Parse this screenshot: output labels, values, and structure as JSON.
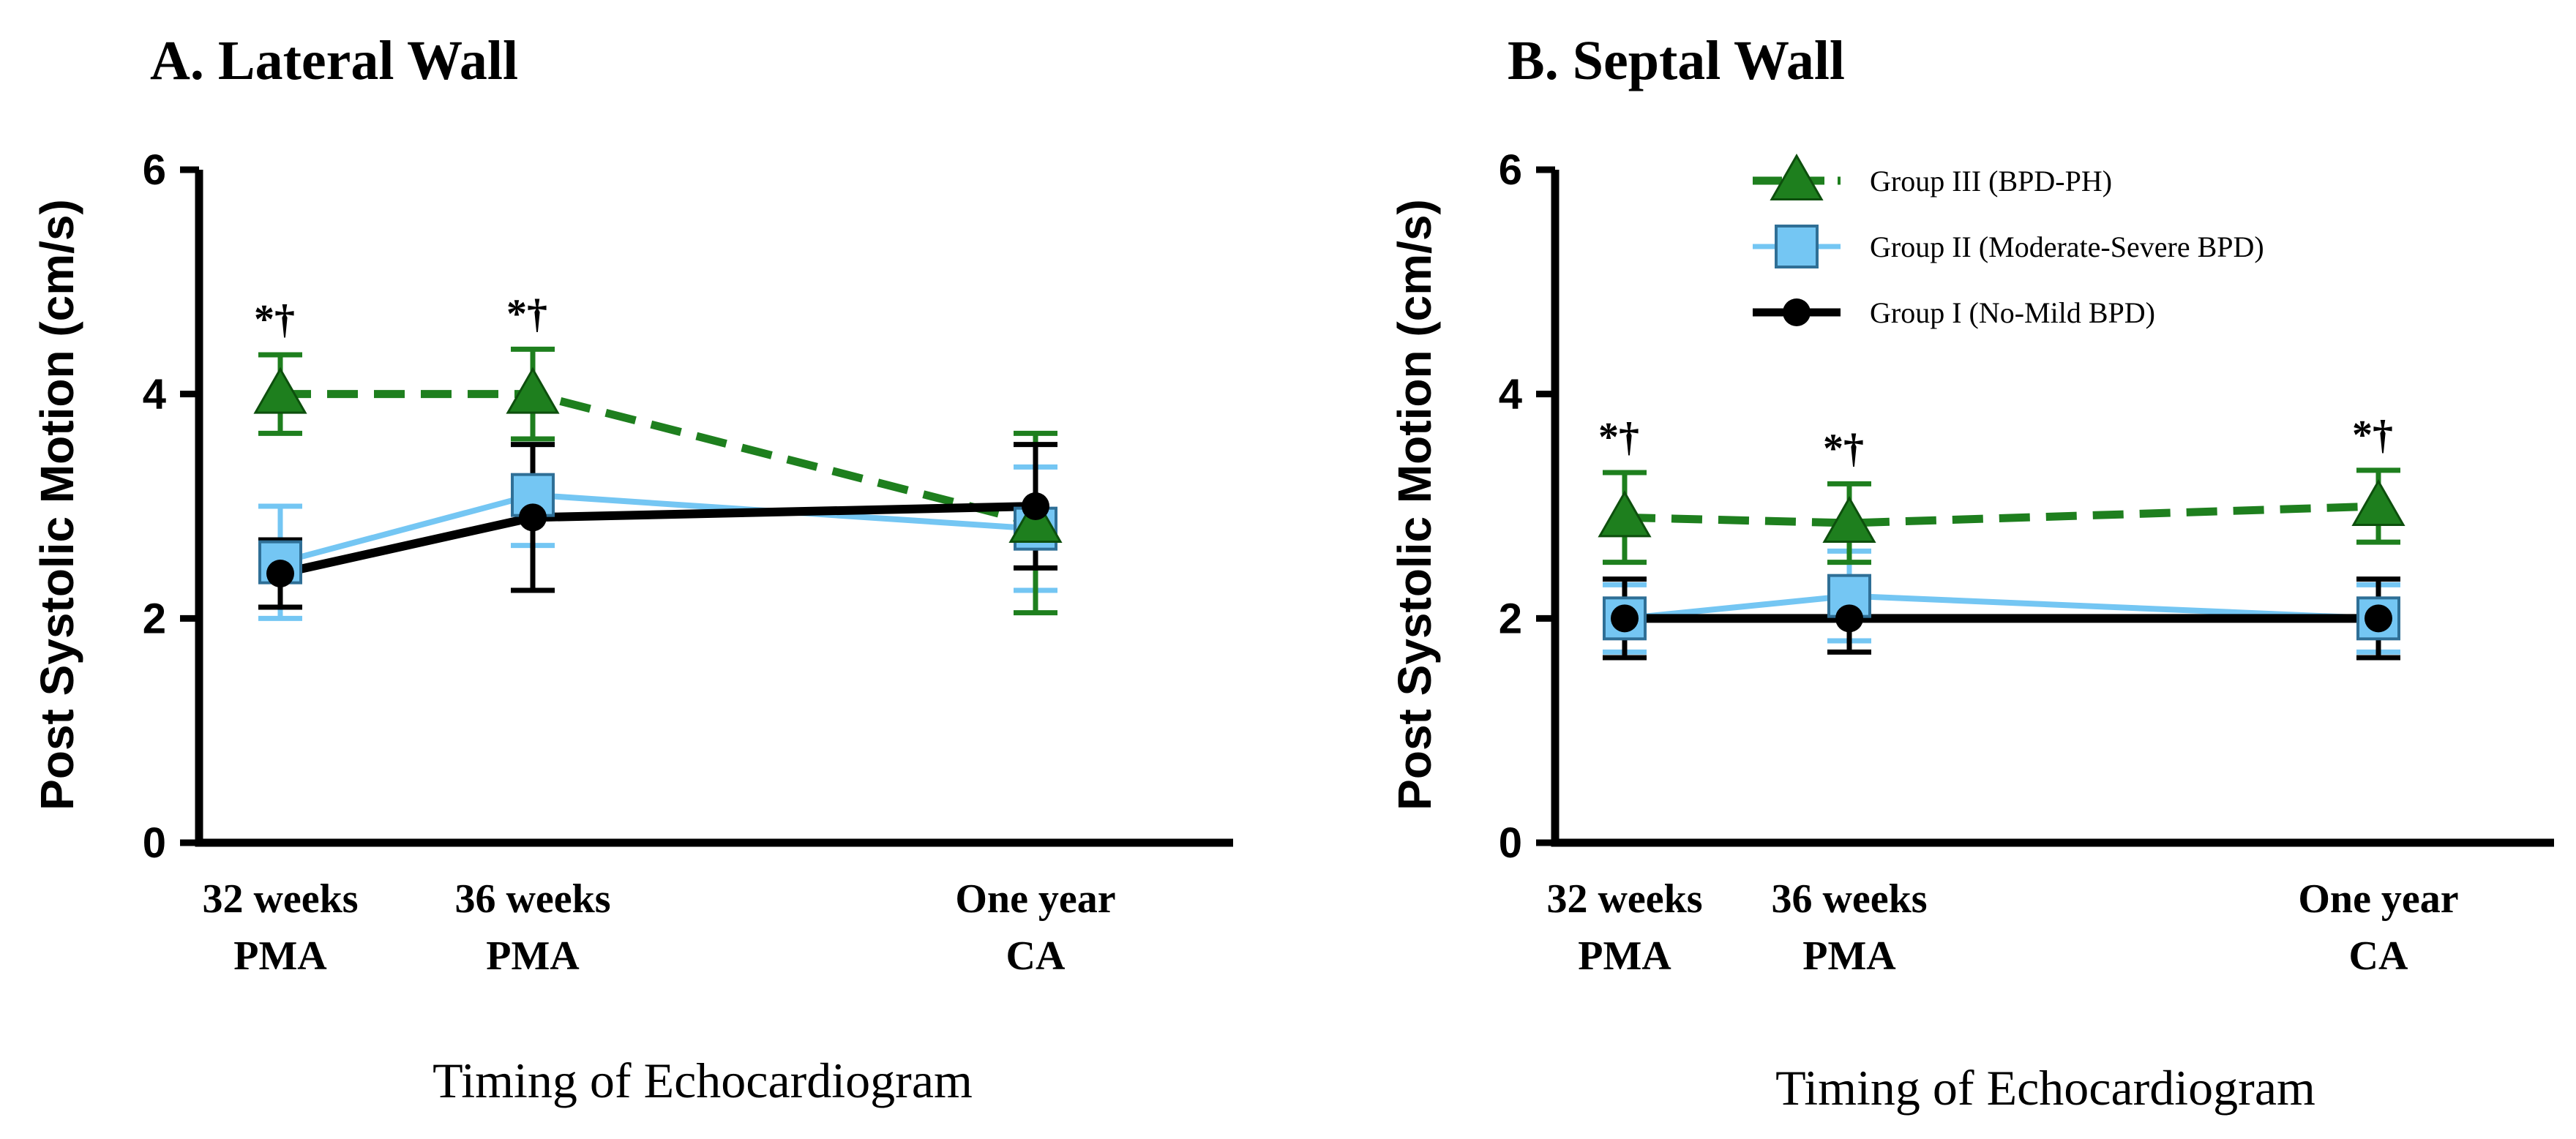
{
  "chart_data": [
    {
      "type": "line",
      "title": "A. Lateral Wall",
      "ylabel": "Post Systolic Motion (cm/s)",
      "xlabel": "Timing of Echocardiogram",
      "categories": [
        {
          "line1": "32 weeks",
          "line2": "PMA",
          "x": 32
        },
        {
          "line1": "36 weeks",
          "line2": "PMA",
          "x": 36
        },
        {
          "line1": "One year",
          "line2": "CA",
          "x": 46
        }
      ],
      "ylim": [
        0,
        6
      ],
      "yticks": [
        "0",
        "2",
        "4",
        "6"
      ],
      "annotations": [
        {
          "category_index": 0,
          "text": "*†"
        },
        {
          "category_index": 1,
          "text": "*†"
        }
      ],
      "series": [
        {
          "name": "Group II (Moderate-Severe BPD)",
          "color": "#74c6f3",
          "marker": "square",
          "dash": false,
          "values": [
            2.5,
            3.1,
            2.8
          ],
          "err_low": [
            2.0,
            2.65,
            2.25
          ],
          "err_high": [
            3.0,
            3.55,
            3.35
          ]
        },
        {
          "name": "Group III (BPD-PH)",
          "color": "#1e7f1e",
          "marker": "triangle",
          "dash": true,
          "values": [
            4.0,
            4.0,
            2.85
          ],
          "err_low": [
            3.65,
            3.6,
            2.05
          ],
          "err_high": [
            4.35,
            4.4,
            3.65
          ]
        },
        {
          "name": "Group I (No-Mild BPD)",
          "color": "#000000",
          "marker": "circle",
          "dash": false,
          "values": [
            2.4,
            2.9,
            3.0
          ],
          "err_low": [
            2.1,
            2.25,
            2.45
          ],
          "err_high": [
            2.7,
            3.55,
            3.55
          ]
        }
      ]
    },
    {
      "type": "line",
      "title": "B. Septal Wall",
      "ylabel": "Post Systolic Motion (cm/s)",
      "xlabel": "Timing of Echocardiogram",
      "categories": [
        {
          "line1": "32 weeks",
          "line2": "PMA",
          "x": 32
        },
        {
          "line1": "36 weeks",
          "line2": "PMA",
          "x": 36
        },
        {
          "line1": "One year",
          "line2": "CA",
          "x": 46
        }
      ],
      "ylim": [
        0,
        6
      ],
      "yticks": [
        "0",
        "2",
        "4",
        "6"
      ],
      "annotations": [
        {
          "category_index": 0,
          "text": "*†"
        },
        {
          "category_index": 1,
          "text": "*†"
        },
        {
          "category_index": 2,
          "text": "*†"
        }
      ],
      "legend": {
        "position": "top-right",
        "entries": [
          {
            "label": "Group III (BPD-PH)",
            "color": "#1e7f1e",
            "marker": "triangle",
            "dash": true
          },
          {
            "label": "Group II (Moderate-Severe BPD)",
            "color": "#74c6f3",
            "marker": "square",
            "dash": false
          },
          {
            "label": "Group I (No-Mild BPD)",
            "color": "#000000",
            "marker": "circle",
            "dash": false
          }
        ]
      },
      "series": [
        {
          "name": "Group II (Moderate-Severe BPD)",
          "color": "#74c6f3",
          "marker": "square",
          "dash": false,
          "values": [
            2.0,
            2.2,
            2.0
          ],
          "err_low": [
            1.7,
            1.8,
            1.7
          ],
          "err_high": [
            2.3,
            2.6,
            2.3
          ]
        },
        {
          "name": "Group III (BPD-PH)",
          "color": "#1e7f1e",
          "marker": "triangle",
          "dash": true,
          "values": [
            2.9,
            2.85,
            3.0
          ],
          "err_low": [
            2.5,
            2.5,
            2.68
          ],
          "err_high": [
            3.3,
            3.2,
            3.32
          ]
        },
        {
          "name": "Group I (No-Mild BPD)",
          "color": "#000000",
          "marker": "circle",
          "dash": false,
          "values": [
            2.0,
            2.0,
            2.0
          ],
          "err_low": [
            1.65,
            1.7,
            1.65
          ],
          "err_high": [
            2.35,
            2.3,
            2.35
          ]
        }
      ]
    }
  ]
}
